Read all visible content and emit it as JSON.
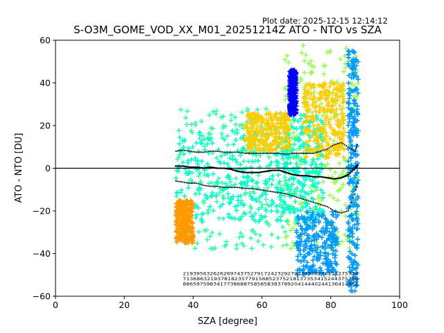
{
  "plot_date": "Plot date: 2025-12-15 12:14:12",
  "chart_data": {
    "type": "scatter",
    "title": "S-O3M_GOME_VOD_XX_M01_20251214Z ATO - NTO vs SZA",
    "xlabel": "SZA [degree]",
    "ylabel": "ATO - NTO [DU]",
    "xlim": [
      0,
      100
    ],
    "ylim": [
      -60,
      60
    ],
    "xticks": [
      0,
      20,
      40,
      60,
      80,
      100
    ],
    "yticks": [
      -60,
      -40,
      -20,
      0,
      20,
      40,
      60
    ],
    "grid": false,
    "marker": "+",
    "point_colors": [
      "#00ffcc",
      "#33ffaa",
      "#99ff55",
      "#ffcc00",
      "#0099ff",
      "#0000ff",
      "#ff9900"
    ],
    "reference_line": {
      "y": 0,
      "color": "#000000"
    },
    "clouds": [
      {
        "x_range": [
          35,
          68
        ],
        "y_range": [
          -38,
          28
        ],
        "color": "#33ffaa"
      },
      {
        "x_range": [
          35,
          68
        ],
        "y_range": [
          -25,
          18
        ],
        "color": "#00ffcc"
      },
      {
        "x_range": [
          66,
          88
        ],
        "y_range": [
          -38,
          58
        ],
        "color": "#99ff55"
      },
      {
        "x_range": [
          66,
          78
        ],
        "y_range": [
          -25,
          25
        ],
        "color": "#00ffcc"
      },
      {
        "x_range": [
          72,
          84
        ],
        "y_range": [
          5,
          40
        ],
        "color": "#ffcc00"
      },
      {
        "x_range": [
          35,
          40
        ],
        "y_range": [
          -35,
          -15
        ],
        "color": "#ff9900"
      },
      {
        "x_range": [
          55,
          68
        ],
        "y_range": [
          8,
          26
        ],
        "color": "#ffcc00"
      },
      {
        "x_range": [
          68,
          70
        ],
        "y_range": [
          25,
          46
        ],
        "color": "#0000ff"
      },
      {
        "x_range": [
          70,
          82
        ],
        "y_range": [
          -50,
          -20
        ],
        "color": "#0099ff"
      },
      {
        "x_range": [
          85,
          88
        ],
        "y_range": [
          -58,
          55
        ],
        "color": "#0099ff"
      }
    ],
    "series": [
      {
        "style": "mean",
        "x": [
          35,
          37,
          39,
          41,
          43,
          45,
          47,
          49,
          51,
          53,
          55,
          57,
          59,
          61,
          63,
          65,
          67,
          69,
          71,
          73,
          75,
          77,
          79,
          81,
          83,
          85,
          87,
          88
        ],
        "y": [
          1,
          1,
          0.5,
          0.5,
          0,
          0.5,
          0,
          0,
          -0.5,
          -1.5,
          -2,
          -2,
          -2,
          -1.5,
          -1,
          -1,
          -2,
          -3,
          -3.5,
          -3.5,
          -4,
          -4,
          -4.5,
          -5,
          -4.5,
          -3,
          0,
          2
        ]
      },
      {
        "style": "upper",
        "x": [
          35,
          37,
          39,
          41,
          43,
          45,
          47,
          49,
          51,
          53,
          55,
          57,
          59,
          61,
          63,
          65,
          67,
          69,
          71,
          73,
          75,
          77,
          79,
          81,
          83,
          85,
          87,
          88
        ],
        "y": [
          8,
          8.5,
          8,
          7.5,
          7.5,
          8,
          8,
          7.5,
          7.5,
          7.5,
          7,
          7,
          7,
          7,
          7,
          7,
          6.5,
          7,
          7,
          7,
          7,
          8,
          9,
          11,
          12,
          10,
          8,
          12
        ]
      },
      {
        "style": "lower",
        "x": [
          35,
          37,
          39,
          41,
          43,
          45,
          47,
          49,
          51,
          53,
          55,
          57,
          59,
          61,
          63,
          65,
          67,
          69,
          71,
          73,
          75,
          77,
          79,
          81,
          83,
          85,
          87,
          88
        ],
        "y": [
          -6,
          -6.5,
          -7,
          -7,
          -8,
          -8.5,
          -8.5,
          -9,
          -9,
          -9,
          -9.5,
          -9.5,
          -10,
          -10.5,
          -11,
          -11.5,
          -12,
          -13,
          -14,
          -15,
          -16,
          -17,
          -18,
          -20,
          -21,
          -20,
          -12,
          -5
        ]
      }
    ],
    "count_labels": {
      "rows": [
        "2193956326262697437527917242329279376378276137275736",
        "713686321937818235779156852375218137353415244375736",
        "8865975983417738688758585838378920414440244136414802"
      ],
      "y": [
        -50,
        -52.5,
        -55
      ]
    }
  }
}
